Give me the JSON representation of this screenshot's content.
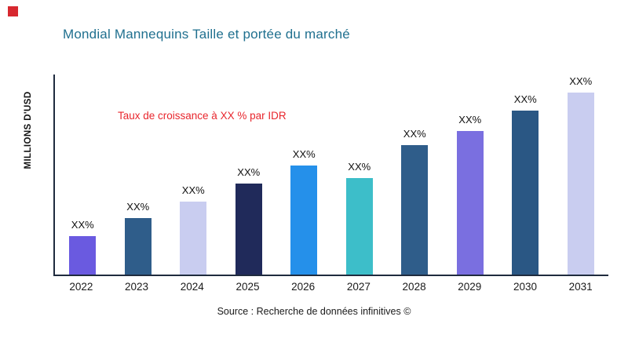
{
  "page": {
    "title": "Mondial Mannequins Taille et portée du marché"
  },
  "axes": {
    "y_label": "MILLIONS D'USD"
  },
  "annotation": {
    "growth_note": "Taux de croissance à XX % par IDR"
  },
  "footer": {
    "source": "Source : Recherche de données infinitives ©"
  },
  "colors": {
    "title": "#20708F",
    "annotation_red": "#E8262D",
    "brand_square_red": "#D7282F",
    "axis": "#1F2B3E"
  },
  "chart_data": {
    "type": "bar",
    "title": "Mondial Mannequins Taille et portée du marché",
    "xlabel": "",
    "ylabel": "MILLIONS D'USD",
    "categories": [
      "2022",
      "2023",
      "2024",
      "2025",
      "2026",
      "2027",
      "2028",
      "2029",
      "2030",
      "2031"
    ],
    "values": [
      21,
      31,
      40,
      50,
      60,
      53,
      71,
      79,
      90,
      100
    ],
    "value_note": "actual values masked in source image; values are relative bar heights (max = 100)",
    "value_labels": [
      "XX%",
      "XX%",
      "XX%",
      "XX%",
      "XX%",
      "XX%",
      "XX%",
      "XX%",
      "XX%",
      "XX%"
    ],
    "bar_colors": [
      "#6A5AE0",
      "#2F5D8A",
      "#C9CDF0",
      "#202A5A",
      "#2590EA",
      "#3DBEC9",
      "#2F5D8A",
      "#7A6FE0",
      "#2A5784",
      "#C9CDF0"
    ],
    "ylim": [
      0,
      100
    ],
    "grid": false,
    "legend": false,
    "annotations": [
      "Taux de croissance à XX % par IDR"
    ],
    "source": "Source : Recherche de données infinitives ©"
  }
}
